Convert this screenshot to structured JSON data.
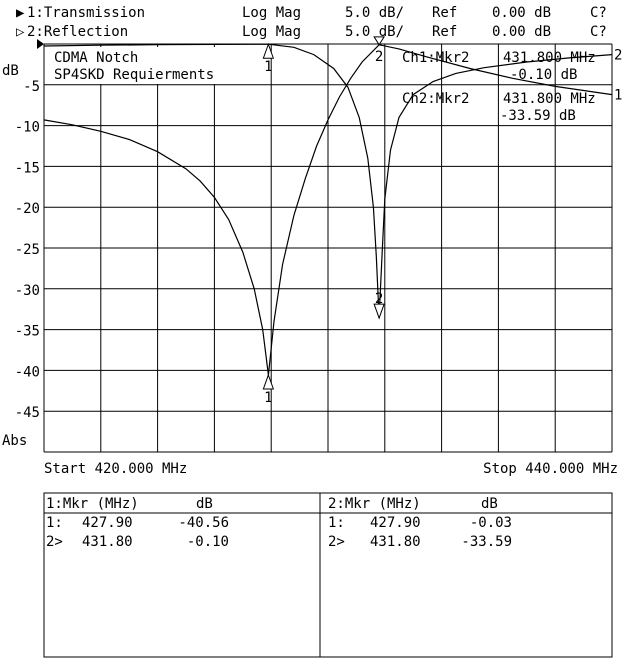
{
  "header": {
    "ch1": {
      "indicator": "▶",
      "label": "1:Transmission",
      "format": "Log Mag",
      "scale": "5.0 dB/",
      "ref_label": "Ref",
      "ref_value": "0.00 dB",
      "status": "C?"
    },
    "ch2": {
      "indicator": "▷",
      "label": "2:Reflection",
      "format": "Log Mag",
      "scale": "5.0 dB/",
      "ref_label": "Ref",
      "ref_value": "0.00 dB",
      "status": "C?"
    }
  },
  "annotation": {
    "line1": "CDMA Notch",
    "line2": "SP4SKD Requierments"
  },
  "marker_readout": {
    "ch1_label": "Ch1:Mkr2",
    "ch1_freq": "431.800 MHz",
    "ch1_value": "-0.10 dB",
    "ch2_label": "Ch2:Mkr2",
    "ch2_freq": "431.800 MHz",
    "ch2_value": "-33.59 dB"
  },
  "footer": {
    "start": "Start 420.000 MHz",
    "stop": "Stop 440.000 MHz",
    "yunit": "dB",
    "yunit_bottom": "Abs"
  },
  "marker_table": {
    "ch1": {
      "header_mkr": "1:Mkr (MHz)",
      "header_db": "dB",
      "rows": [
        {
          "id": "1:",
          "freq": "427.90",
          "db": "-40.56"
        },
        {
          "id": "2>",
          "freq": "431.80",
          "db": "-0.10"
        }
      ]
    },
    "ch2": {
      "header_mkr": "2:Mkr (MHz)",
      "header_db": "dB",
      "rows": [
        {
          "id": "1:",
          "freq": "427.90",
          "db": "-0.03"
        },
        {
          "id": "2>",
          "freq": "431.80",
          "db": "-33.59"
        }
      ]
    }
  },
  "chart_data": {
    "type": "line",
    "xlabel": "",
    "ylabel": "dB",
    "xlim": [
      420,
      440
    ],
    "ylim": [
      -50,
      0
    ],
    "yticks": [
      -5,
      -10,
      -15,
      -20,
      -25,
      -30,
      -35,
      -40,
      -45
    ],
    "grid": true,
    "series": [
      {
        "name": "1:Transmission",
        "end_label": "1",
        "x": [
          420,
          421,
          422,
          423,
          424,
          425,
          425.5,
          426,
          426.5,
          427,
          427.4,
          427.7,
          427.9,
          428.1,
          428.4,
          428.8,
          429.2,
          429.6,
          430,
          430.4,
          430.8,
          431.2,
          431.8,
          432.5,
          433.5,
          435,
          436.5,
          438,
          440
        ],
        "y": [
          -9.3,
          -9.9,
          -10.7,
          -11.7,
          -13.2,
          -15.3,
          -16.8,
          -18.8,
          -21.5,
          -25.5,
          -30,
          -35,
          -40.56,
          -34,
          -27,
          -21,
          -16.5,
          -12.5,
          -9.3,
          -6.5,
          -4.2,
          -2.2,
          -0.1,
          -0.6,
          -1.6,
          -3.0,
          -4.2,
          -5.2,
          -6.2
        ]
      },
      {
        "name": "2:Reflection",
        "end_label": "2",
        "x": [
          420,
          422,
          424,
          426,
          427.9,
          428.8,
          429.5,
          430.2,
          430.7,
          431.1,
          431.4,
          431.6,
          431.7,
          431.8,
          431.9,
          432.0,
          432.2,
          432.5,
          433,
          433.7,
          434.5,
          435.5,
          437,
          438.5,
          440
        ],
        "y": [
          -0.25,
          -0.15,
          -0.08,
          -0.05,
          -0.03,
          -0.4,
          -1.3,
          -3.0,
          -5.3,
          -9,
          -14,
          -20,
          -26,
          -33.59,
          -26,
          -19,
          -13,
          -9,
          -6.2,
          -4.6,
          -3.6,
          -2.9,
          -2.2,
          -1.7,
          -1.3
        ]
      }
    ],
    "markers": [
      {
        "series": "1:Transmission",
        "id": "1",
        "x": 427.9,
        "y": -40.56
      },
      {
        "series": "1:Transmission",
        "id": "2",
        "x": 431.8,
        "y": -0.1,
        "active": true
      },
      {
        "series": "2:Reflection",
        "id": "1",
        "x": 427.9,
        "y": -0.03
      },
      {
        "series": "2:Reflection",
        "id": "2",
        "x": 431.8,
        "y": -33.59,
        "active": true
      }
    ]
  }
}
